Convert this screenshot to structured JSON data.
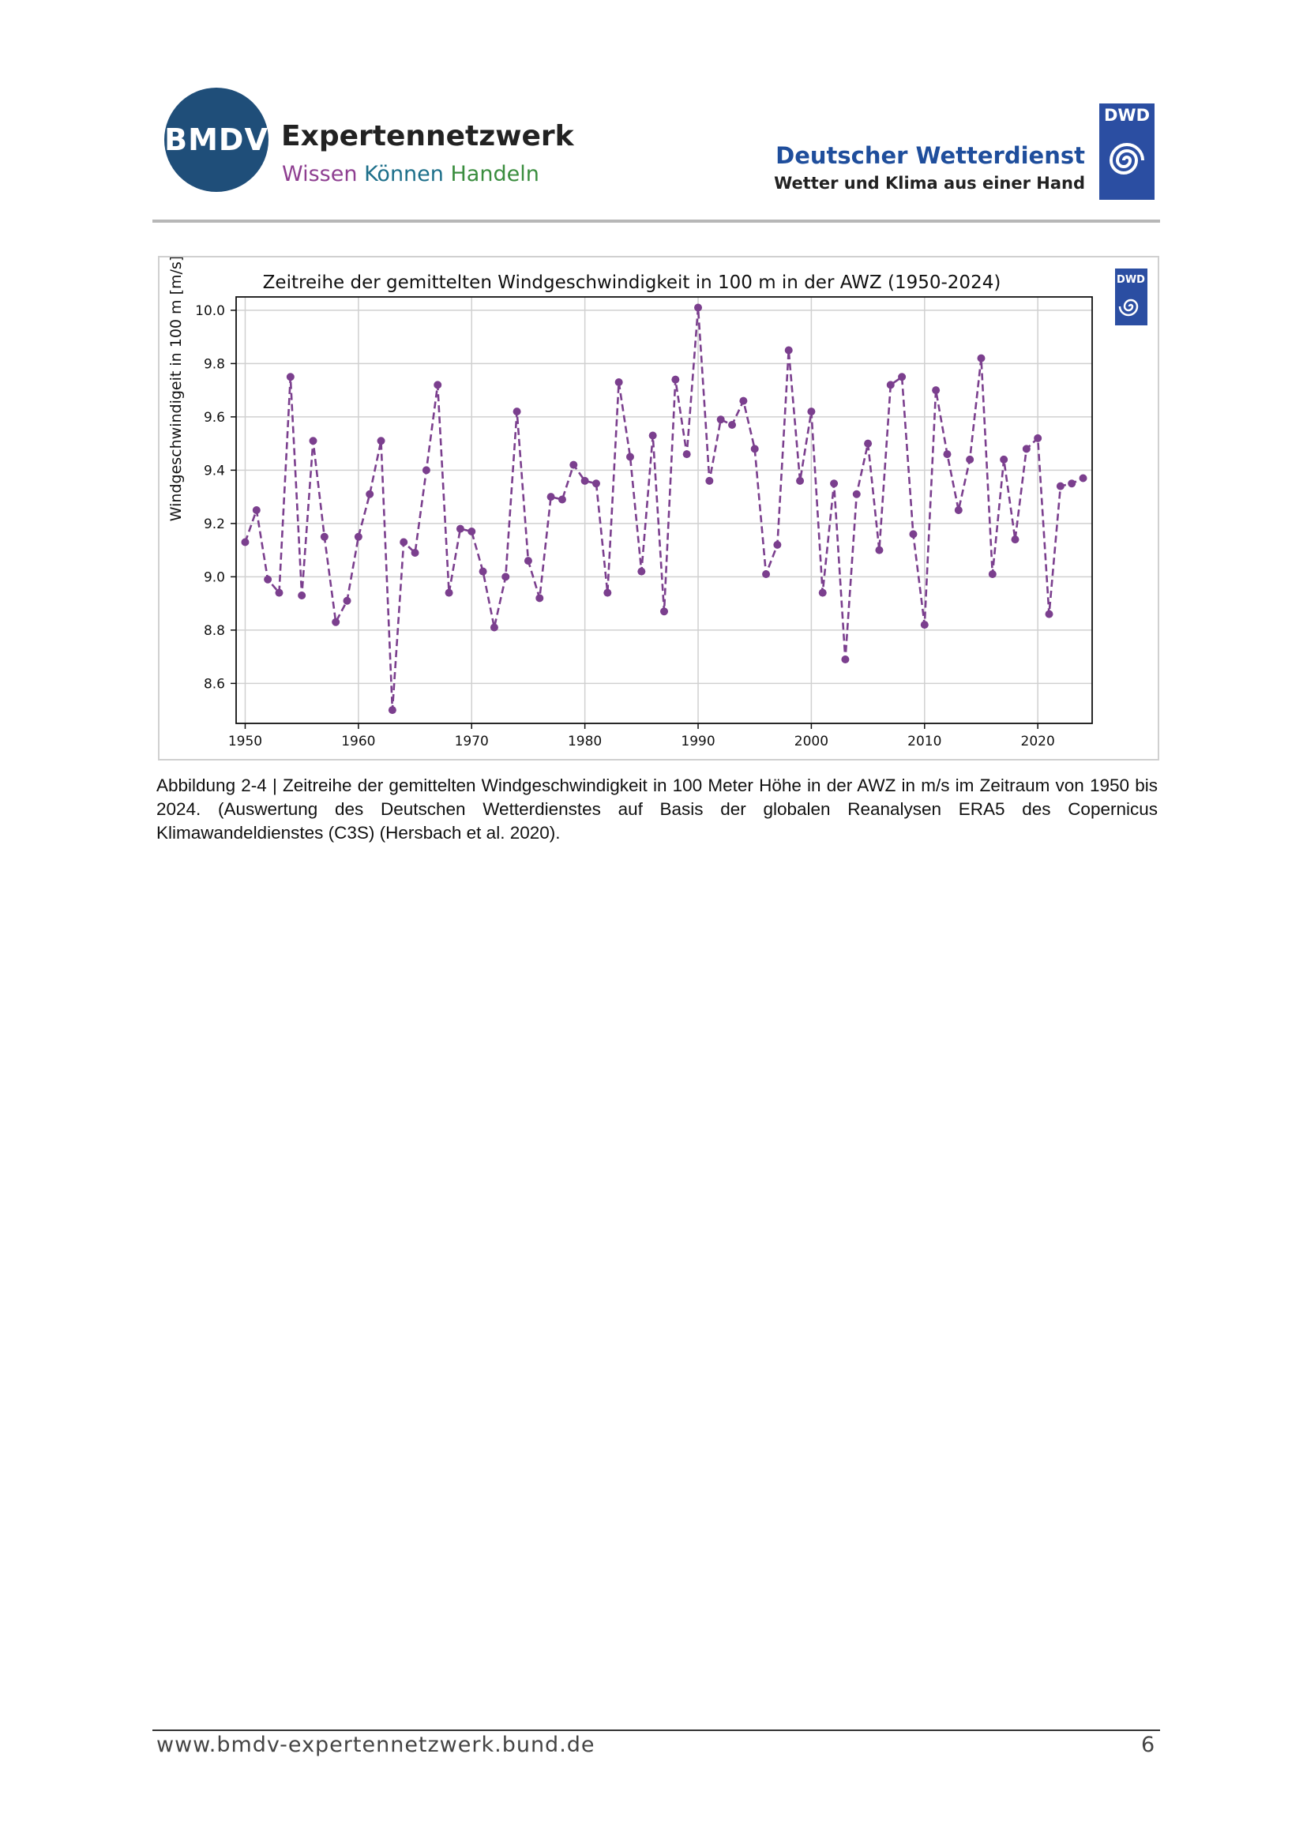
{
  "header": {
    "logo_text": "BMDV",
    "title": "Expertennetzwerk",
    "subtitle_words": [
      "Wissen",
      "Können",
      "Handeln"
    ],
    "dwd_name": "Deutscher Wetterdienst",
    "dwd_slogan": "Wetter und Klima aus einer Hand",
    "dwd_badge": "DWD"
  },
  "colors": {
    "series": "#7b3f8e",
    "bmdv_blue": "#1f4e79",
    "dwd_blue": "#2b4ea2"
  },
  "chart_data": {
    "type": "line",
    "title": "Zeitreihe der gemittelten Windgeschwindigkeit in 100 m in der AWZ (1950-2024)",
    "xlabel": "",
    "ylabel": "Windgeschwindigeit in 100 m [m/s]",
    "badge": "DWD",
    "xlim": [
      1949.2,
      2024.8
    ],
    "ylim": [
      8.45,
      10.05
    ],
    "xticks": [
      1950,
      1960,
      1970,
      1980,
      1990,
      2000,
      2010,
      2020
    ],
    "yticks": [
      8.6,
      8.8,
      9.0,
      9.2,
      9.4,
      9.6,
      9.8,
      10.0
    ],
    "grid": true,
    "line_style": "dashed",
    "marker": "circle",
    "series": [
      {
        "name": "Windgeschwindigkeit 100 m",
        "x": [
          1950,
          1951,
          1952,
          1953,
          1954,
          1955,
          1956,
          1957,
          1958,
          1959,
          1960,
          1961,
          1962,
          1963,
          1964,
          1965,
          1966,
          1967,
          1968,
          1969,
          1970,
          1971,
          1972,
          1973,
          1974,
          1975,
          1976,
          1977,
          1978,
          1979,
          1980,
          1981,
          1982,
          1983,
          1984,
          1985,
          1986,
          1987,
          1988,
          1989,
          1990,
          1991,
          1992,
          1993,
          1994,
          1995,
          1996,
          1997,
          1998,
          1999,
          2000,
          2001,
          2002,
          2003,
          2004,
          2005,
          2006,
          2007,
          2008,
          2009,
          2010,
          2011,
          2012,
          2013,
          2014,
          2015,
          2016,
          2017,
          2018,
          2019,
          2020,
          2021,
          2022,
          2023,
          2024
        ],
        "values": [
          9.13,
          9.25,
          8.99,
          8.94,
          9.75,
          8.93,
          9.51,
          9.15,
          8.83,
          8.91,
          9.15,
          9.31,
          9.51,
          8.5,
          9.13,
          9.09,
          9.4,
          9.72,
          8.94,
          9.18,
          9.17,
          9.02,
          8.81,
          9.0,
          9.62,
          9.06,
          8.92,
          9.3,
          9.29,
          9.42,
          9.36,
          9.35,
          8.94,
          9.73,
          9.45,
          9.02,
          9.53,
          8.87,
          9.74,
          9.46,
          10.01,
          9.36,
          9.59,
          9.57,
          9.66,
          9.48,
          9.01,
          9.12,
          9.85,
          9.36,
          9.62,
          8.94,
          9.35,
          8.69,
          9.31,
          9.5,
          9.1,
          9.72,
          9.75,
          9.16,
          8.82,
          9.7,
          9.46,
          9.25,
          9.44,
          9.82,
          9.01,
          9.44,
          9.14,
          9.48,
          9.52,
          8.86,
          9.34,
          9.35,
          9.37
        ]
      }
    ]
  },
  "caption": "Abbildung 2-4 | Zeitreihe der gemittelten Windgeschwindigkeit in 100 Meter Höhe in der AWZ in m/s im Zeitraum von 1950 bis 2024. (Auswertung des Deutschen Wetterdienstes auf Basis der globalen Reanalysen ERA5 des Copernicus Klimawandeldienstes (C3S) (Hersbach et al. 2020).",
  "footer": {
    "url": "www.bmdv-expertennetzwerk.bund.de",
    "page": "6"
  }
}
